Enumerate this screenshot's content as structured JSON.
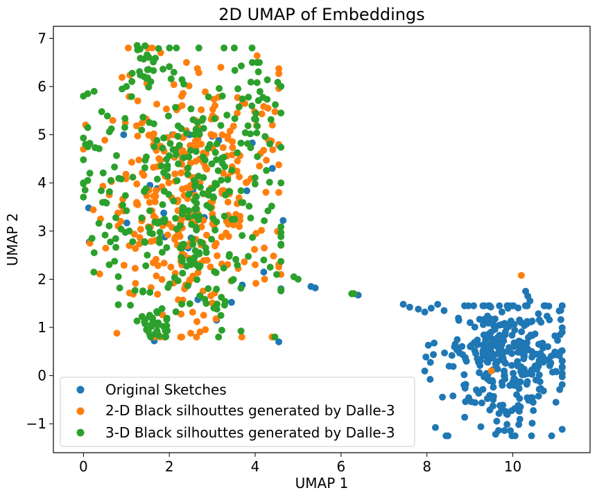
{
  "chart_data": {
    "type": "scatter",
    "title": "2D UMAP of Embeddings",
    "xlabel": "UMAP 1",
    "ylabel": "UMAP 2",
    "xlim": [
      -0.7,
      11.8
    ],
    "ylim": [
      -1.6,
      7.25
    ],
    "xticks": [
      0,
      2,
      4,
      6,
      8,
      10
    ],
    "yticks": [
      -1,
      0,
      1,
      2,
      3,
      4,
      5,
      6,
      7
    ],
    "xtick_labels": [
      "0",
      "2",
      "4",
      "6",
      "8",
      "10"
    ],
    "ytick_labels": [
      "−1",
      "0",
      "1",
      "2",
      "3",
      "4",
      "5",
      "6",
      "7"
    ],
    "legend_position": "lower-left",
    "series": [
      {
        "name": "Original Sketches",
        "color": "#1f77b4",
        "clusters": [
          {
            "cx": 9.9,
            "cy": 0.35,
            "sx": 0.75,
            "sy": 0.7,
            "n": 330,
            "xmin": 7.9,
            "xmax": 11.15,
            "ymin": -1.25,
            "ymax": 1.45
          },
          {
            "cx": 2.5,
            "cy": 3.5,
            "sx": 1.1,
            "sy": 1.3,
            "n": 18,
            "xmin": 0.1,
            "xmax": 4.6,
            "ymin": 0.7,
            "ymax": 5.0
          }
        ],
        "points": [
          [
            7.45,
            1.48
          ],
          [
            7.6,
            1.42
          ],
          [
            7.8,
            1.38
          ],
          [
            7.95,
            1.32
          ],
          [
            8.1,
            1.4
          ],
          [
            8.25,
            1.48
          ],
          [
            8.4,
            1.35
          ],
          [
            10.35,
            1.65
          ],
          [
            10.4,
            1.55
          ],
          [
            10.3,
            1.75
          ],
          [
            6.4,
            1.67
          ],
          [
            5.4,
            1.82
          ],
          [
            5.3,
            1.85
          ],
          [
            4.65,
            3.22
          ],
          [
            4.4,
            4.3
          ],
          [
            3.15,
            4.88
          ],
          [
            3.1,
            1.15
          ],
          [
            1.65,
            0.72
          ],
          [
            0.12,
            3.48
          ],
          [
            3.7,
            1.88
          ],
          [
            4.2,
            2.15
          ],
          [
            3.0,
            4.97
          ],
          [
            1.55,
            3.95
          ],
          [
            2.55,
            3.85
          ]
        ]
      },
      {
        "name": "2-D Black silhouttes generated by Dalle-3",
        "color": "#ff7f0e",
        "clusters": [
          {
            "cx": 2.45,
            "cy": 3.6,
            "sx": 1.05,
            "sy": 1.35,
            "n": 330,
            "xmin": 0.05,
            "xmax": 4.55,
            "ymin": 0.8,
            "ymax": 6.8
          }
        ],
        "points": [
          [
            10.2,
            2.08
          ],
          [
            9.5,
            0.1
          ],
          [
            6.3,
            1.7
          ],
          [
            4.6,
            2.1
          ],
          [
            4.0,
            2.3
          ],
          [
            1.5,
            6.8
          ],
          [
            1.8,
            6.7
          ],
          [
            2.4,
            6.5
          ],
          [
            3.2,
            6.4
          ],
          [
            0.0,
            4.7
          ],
          [
            4.4,
            5.2
          ],
          [
            4.1,
            4.35
          ],
          [
            0.15,
            2.75
          ],
          [
            1.65,
            0.8
          ],
          [
            2.1,
            5.0
          ]
        ]
      },
      {
        "name": "3-D Black silhouttes generated by Dalle-3",
        "color": "#2ca02c",
        "clusters": [
          {
            "cx": 2.4,
            "cy": 3.7,
            "sx": 1.1,
            "sy": 1.45,
            "n": 320,
            "xmin": 0.0,
            "xmax": 4.6,
            "ymin": 0.8,
            "ymax": 6.8
          },
          {
            "cx": 1.7,
            "cy": 1.1,
            "sx": 0.2,
            "sy": 0.2,
            "n": 25,
            "xmin": 1.3,
            "xmax": 2.1,
            "ymin": 0.8,
            "ymax": 1.5
          },
          {
            "cx": 1.5,
            "cy": 6.5,
            "sx": 0.25,
            "sy": 0.2,
            "n": 22,
            "xmin": 1.0,
            "xmax": 2.0,
            "ymin": 6.1,
            "ymax": 6.85
          },
          {
            "cx": 4.0,
            "cy": 5.8,
            "sx": 0.35,
            "sy": 0.4,
            "n": 22,
            "xmin": 3.3,
            "xmax": 4.6,
            "ymin": 5.0,
            "ymax": 6.5
          }
        ],
        "points": [
          [
            0.05,
            4.8
          ],
          [
            0.15,
            4.82
          ],
          [
            0.1,
            4.75
          ],
          [
            0.0,
            5.8
          ],
          [
            0.1,
            5.85
          ],
          [
            0.25,
            5.9
          ],
          [
            0.1,
            5.15
          ],
          [
            0.15,
            4.2
          ],
          [
            0.1,
            4.05
          ],
          [
            0.2,
            2.85
          ],
          [
            0.25,
            2.55
          ],
          [
            4.2,
            2.4
          ],
          [
            4.35,
            2.25
          ],
          [
            4.5,
            2.1
          ],
          [
            4.9,
            2.05
          ],
          [
            5.0,
            2.0
          ],
          [
            6.3,
            1.7
          ],
          [
            6.25,
            1.7
          ],
          [
            1.0,
            6.0
          ],
          [
            0.9,
            5.95
          ],
          [
            0.5,
            3.6
          ],
          [
            0.6,
            2.3
          ]
        ]
      }
    ]
  }
}
